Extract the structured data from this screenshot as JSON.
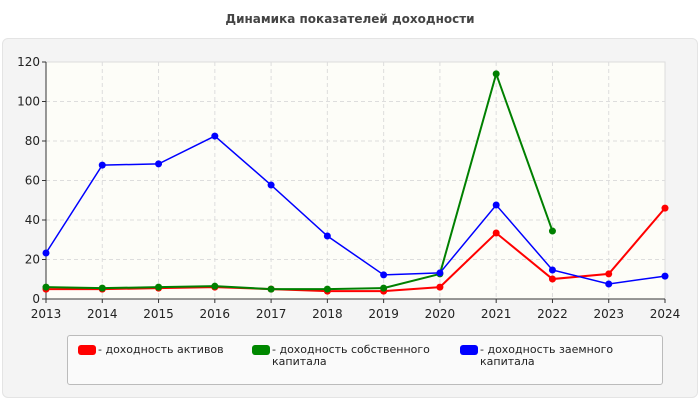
{
  "chart_data": {
    "type": "line",
    "title": "Динамика показателей доходности",
    "xlabel": "",
    "ylabel": "",
    "categories": [
      "2013",
      "2014",
      "2015",
      "2016",
      "2017",
      "2018",
      "2019",
      "2020",
      "2021",
      "2022",
      "2023",
      "2024"
    ],
    "ylim": [
      0,
      120
    ],
    "yticks": [
      "0",
      "20",
      "40",
      "60",
      "80",
      "100",
      "120"
    ],
    "grid": true,
    "legend_placement": "bottom",
    "series": [
      {
        "name": "- доходность активов",
        "color": "#ff0000",
        "values": [
          5,
          5,
          5.5,
          6,
          5,
          4,
          4,
          6,
          33.4,
          10.1,
          12.7,
          46
        ]
      },
      {
        "name": "- доходность собственного капитала",
        "color": "#008000",
        "values": [
          6,
          5.5,
          6,
          6.5,
          5,
          5,
          5.5,
          12.7,
          114,
          34.4,
          null,
          null
        ]
      },
      {
        "name": "- доходность заемного капитала",
        "color": "#0000ff",
        "values": [
          23.3,
          67.8,
          68.4,
          82.5,
          57.7,
          31.9,
          12.2,
          13.2,
          47.6,
          14.7,
          7.6,
          11.6
        ]
      }
    ]
  }
}
